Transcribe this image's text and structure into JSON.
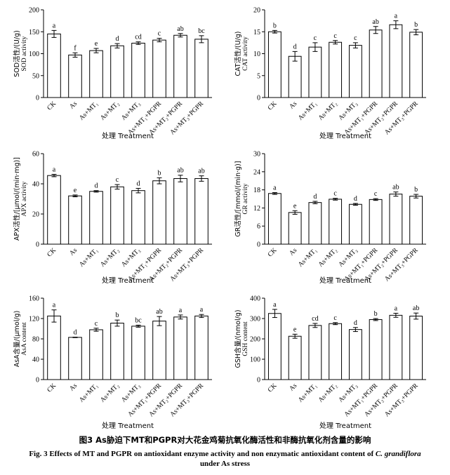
{
  "caption": {
    "cn": "图3   As胁迫下MT和PGPR对大花金鸡菊抗氧化酶活性和非酶抗氧化剂含量的影响",
    "en_line1_prefix": "Fig. 3   Effects of MT and PGPR on antioxidant enzyme activity and non enzymatic antioxidant content of ",
    "en_species": "C. grandiflora",
    "en_line2": "under As stress"
  },
  "chart_data": [
    {
      "type": "bar",
      "ylabel_cn": "SOD活性/(U/g)",
      "ylabel_en": "SOD activity",
      "xlabel": "处理 Treatment",
      "ylim": [
        0,
        200
      ],
      "yticks": [
        0,
        50,
        100,
        150,
        200
      ],
      "categories": [
        "CK",
        "As",
        "As+MT₁",
        "As+MT₂",
        "As+MT₃",
        "As+MT₁+PGPR",
        "As+MT₂+PGPR",
        "As+MT₃+PGPR"
      ],
      "values": [
        145,
        97,
        107,
        118,
        124,
        131,
        142,
        133
      ],
      "errors": [
        8,
        5,
        5,
        5,
        3,
        4,
        4,
        8
      ],
      "letters": [
        "a",
        "f",
        "e",
        "d",
        "cd",
        "c",
        "ab",
        "bc"
      ]
    },
    {
      "type": "bar",
      "ylabel_cn": "CAT活性/(U/g)",
      "ylabel_en": "CAT activity",
      "xlabel": "处理 Treatment",
      "ylim": [
        0,
        20
      ],
      "yticks": [
        0,
        5,
        10,
        15,
        20
      ],
      "categories": [
        "CK",
        "As",
        "As+MT₁",
        "As+MT₂",
        "As+MT₃",
        "As+MT₁+PGPR",
        "As+MT₂+PGPR",
        "As+MT₃+PGPR"
      ],
      "values": [
        15.0,
        9.4,
        11.5,
        12.6,
        11.9,
        15.4,
        16.6,
        14.9
      ],
      "errors": [
        0.3,
        1.1,
        1.0,
        0.4,
        0.6,
        0.8,
        0.9,
        0.6
      ],
      "letters": [
        "b",
        "d",
        "c",
        "c",
        "c",
        "ab",
        "a",
        "b"
      ]
    },
    {
      "type": "bar",
      "ylabel_cn": "APX活性/[μmol/(min·mg)]",
      "ylabel_en": "APX activity",
      "xlabel": "处理 Treatment",
      "ylim": [
        0,
        60
      ],
      "yticks": [
        0,
        20,
        40,
        60
      ],
      "categories": [
        "CK",
        "As",
        "As+MT₁",
        "As+MT₂",
        "As+MT₃",
        "As+MT₁+PGPR",
        "As+MT₂+PGPR",
        "As+MT₃+PGPR"
      ],
      "values": [
        45.5,
        32,
        35,
        38,
        35.5,
        42,
        43.5,
        43.5
      ],
      "errors": [
        0.8,
        0.6,
        0.5,
        1.5,
        1.5,
        2.0,
        2.2,
        1.8
      ],
      "letters": [
        "a",
        "e",
        "d",
        "c",
        "d",
        "b",
        "ab",
        "ab"
      ]
    },
    {
      "type": "bar",
      "ylabel_cn": "GR活性/[mmol/(min·g)]",
      "ylabel_en": "GR activity",
      "xlabel": "处理 Treatment",
      "ylim": [
        0,
        30
      ],
      "yticks": [
        0,
        6,
        12,
        18,
        24,
        30
      ],
      "categories": [
        "CK",
        "As",
        "As+MT₁",
        "As+MT₂",
        "As+MT₃",
        "As+MT₁+PGPR",
        "As+MT₂+PGPR",
        "As+MT₃+PGPR"
      ],
      "values": [
        16.8,
        10.5,
        13.8,
        14.9,
        13.2,
        14.8,
        16.6,
        15.9
      ],
      "errors": [
        0.3,
        0.6,
        0.4,
        0.3,
        0.3,
        0.3,
        0.7,
        0.6
      ],
      "letters": [
        "a",
        "e",
        "d",
        "c",
        "d",
        "c",
        "ab",
        "b"
      ]
    },
    {
      "type": "bar",
      "ylabel_cn": "AsA含量/(μmol/g)",
      "ylabel_en": "AsA content",
      "xlabel": "处理 Treatment",
      "ylim": [
        0,
        160
      ],
      "yticks": [
        0,
        40,
        80,
        120,
        160
      ],
      "categories": [
        "CK",
        "As",
        "As+MT₁",
        "As+MT₂",
        "As+MT₃",
        "As+MT₁+PGPR",
        "As+MT₂+PGPR",
        "As+MT₃+PGPR"
      ],
      "values": [
        125,
        83,
        98,
        111,
        105,
        115,
        123,
        125
      ],
      "errors": [
        12,
        0.5,
        3,
        6,
        2,
        9,
        4,
        3
      ],
      "letters": [
        "a",
        "d",
        "c",
        "b",
        "bc",
        "ab",
        "a",
        "a"
      ]
    },
    {
      "type": "bar",
      "ylabel_cn": "GSH含量/(nmol/g)",
      "ylabel_en": "GSH content",
      "xlabel": "处理 Treatment",
      "ylim": [
        0,
        400
      ],
      "yticks": [
        0,
        100,
        200,
        300,
        400
      ],
      "categories": [
        "CK",
        "As",
        "As+MT₁",
        "As+MT₂",
        "As+MT₃",
        "As+MT₁+PGPR",
        "As+MT₂+PGPR",
        "As+MT₃+PGPR"
      ],
      "values": [
        325,
        213,
        266,
        275,
        246,
        295,
        316,
        312
      ],
      "errors": [
        20,
        10,
        10,
        5,
        10,
        5,
        10,
        15
      ],
      "letters": [
        "a",
        "e",
        "cd",
        "c",
        "d",
        "b",
        "a",
        "ab"
      ]
    }
  ]
}
